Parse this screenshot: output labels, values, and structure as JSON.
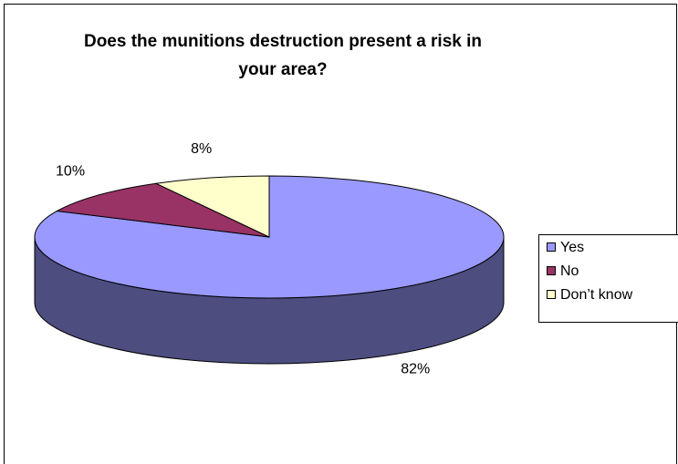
{
  "chart_data": {
    "type": "pie3d",
    "title": "Does the munitions destruction present a risk in your area?",
    "categories": [
      "Yes",
      "No",
      "Don’t know"
    ],
    "values": [
      82,
      10,
      8
    ],
    "value_labels": [
      "82%",
      "10%",
      "8%"
    ],
    "colors": [
      "#9999ff",
      "#993366",
      "#ffffcc"
    ],
    "legend": "right"
  }
}
